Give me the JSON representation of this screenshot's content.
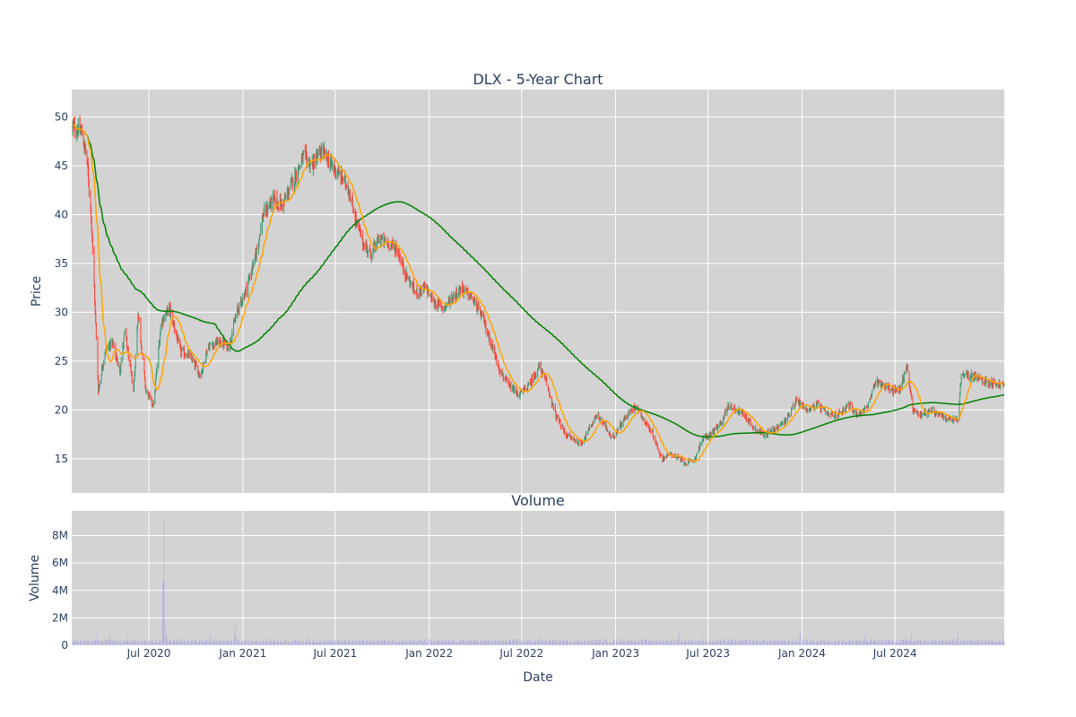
{
  "chart_data": [
    {
      "type": "candlestick",
      "title": "DLX - 5-Year Chart",
      "ylabel": "Price",
      "ylim": [
        11.5,
        52.8
      ],
      "y_ticks": [
        15,
        20,
        25,
        30,
        35,
        40,
        45,
        50
      ],
      "grid": true,
      "legend": "none",
      "x_range": [
        "2020-02-01",
        "2025-01-31"
      ],
      "colors": {
        "up": "#3d9970",
        "down": "#ff4136",
        "ma_short": "#ffa500",
        "ma_long": "#008000",
        "background": "#d3d3d3",
        "grid": "#ffffff"
      },
      "close_anchors": [
        [
          "2020-02-01",
          49.0
        ],
        [
          "2020-02-20",
          48.5
        ],
        [
          "2020-03-02",
          45.5
        ],
        [
          "2020-03-10",
          40.0
        ],
        [
          "2020-03-18",
          30.0
        ],
        [
          "2020-03-24",
          22.0
        ],
        [
          "2020-04-06",
          26.0
        ],
        [
          "2020-04-20",
          27.0
        ],
        [
          "2020-05-05",
          24.0
        ],
        [
          "2020-05-15",
          28.0
        ],
        [
          "2020-06-01",
          22.0
        ],
        [
          "2020-06-10",
          30.0
        ],
        [
          "2020-06-25",
          22.0
        ],
        [
          "2020-07-10",
          20.5
        ],
        [
          "2020-07-25",
          29.0
        ],
        [
          "2020-08-10",
          30.5
        ],
        [
          "2020-09-01",
          26.0
        ],
        [
          "2020-09-20",
          25.5
        ],
        [
          "2020-10-10",
          23.5
        ],
        [
          "2020-10-25",
          26.5
        ],
        [
          "2020-11-15",
          27.0
        ],
        [
          "2020-12-05",
          26.5
        ],
        [
          "2020-12-20",
          30.0
        ],
        [
          "2021-01-05",
          32.0
        ],
        [
          "2021-01-25",
          35.5
        ],
        [
          "2021-02-10",
          40.0
        ],
        [
          "2021-03-01",
          41.5
        ],
        [
          "2021-03-20",
          41.0
        ],
        [
          "2021-04-10",
          43.5
        ],
        [
          "2021-04-30",
          46.0
        ],
        [
          "2021-05-15",
          45.0
        ],
        [
          "2021-06-05",
          46.5
        ],
        [
          "2021-06-25",
          45.0
        ],
        [
          "2021-07-10",
          44.0
        ],
        [
          "2021-07-25",
          43.0
        ],
        [
          "2021-08-10",
          39.5
        ],
        [
          "2021-08-25",
          37.0
        ],
        [
          "2021-09-10",
          36.0
        ],
        [
          "2021-09-25",
          37.5
        ],
        [
          "2021-10-15",
          37.0
        ],
        [
          "2021-10-30",
          36.5
        ],
        [
          "2021-11-15",
          34.0
        ],
        [
          "2021-12-05",
          32.0
        ],
        [
          "2021-12-25",
          32.5
        ],
        [
          "2022-01-10",
          31.0
        ],
        [
          "2022-01-30",
          30.5
        ],
        [
          "2022-02-15",
          31.5
        ],
        [
          "2022-03-05",
          32.5
        ],
        [
          "2022-03-25",
          31.5
        ],
        [
          "2022-04-15",
          29.5
        ],
        [
          "2022-05-01",
          27.0
        ],
        [
          "2022-05-20",
          24.0
        ],
        [
          "2022-06-05",
          22.5
        ],
        [
          "2022-06-25",
          21.5
        ],
        [
          "2022-07-15",
          22.5
        ],
        [
          "2022-08-05",
          24.5
        ],
        [
          "2022-08-20",
          22.5
        ],
        [
          "2022-09-05",
          19.5
        ],
        [
          "2022-09-25",
          17.5
        ],
        [
          "2022-10-10",
          17.0
        ],
        [
          "2022-10-25",
          16.5
        ],
        [
          "2022-11-10",
          18.0
        ],
        [
          "2022-11-25",
          19.5
        ],
        [
          "2022-12-10",
          18.5
        ],
        [
          "2022-12-25",
          17.0
        ],
        [
          "2023-01-10",
          18.5
        ],
        [
          "2023-01-25",
          19.5
        ],
        [
          "2023-02-10",
          20.5
        ],
        [
          "2023-02-25",
          19.0
        ],
        [
          "2023-03-15",
          17.5
        ],
        [
          "2023-04-01",
          15.0
        ],
        [
          "2023-04-20",
          15.5
        ],
        [
          "2023-05-05",
          15.0
        ],
        [
          "2023-05-20",
          14.5
        ],
        [
          "2023-06-05",
          15.0
        ],
        [
          "2023-06-20",
          17.0
        ],
        [
          "2023-07-05",
          17.5
        ],
        [
          "2023-07-25",
          18.5
        ],
        [
          "2023-08-10",
          20.5
        ],
        [
          "2023-08-25",
          20.0
        ],
        [
          "2023-09-10",
          19.5
        ],
        [
          "2023-10-01",
          18.0
        ],
        [
          "2023-10-20",
          17.5
        ],
        [
          "2023-11-10",
          18.0
        ],
        [
          "2023-12-01",
          19.0
        ],
        [
          "2023-12-20",
          21.0
        ],
        [
          "2024-01-10",
          20.0
        ],
        [
          "2024-02-01",
          20.5
        ],
        [
          "2024-02-20",
          19.5
        ],
        [
          "2024-03-10",
          19.5
        ],
        [
          "2024-04-01",
          20.5
        ],
        [
          "2024-04-20",
          19.5
        ],
        [
          "2024-05-10",
          20.5
        ],
        [
          "2024-05-25",
          23.0
        ],
        [
          "2024-06-10",
          22.5
        ],
        [
          "2024-06-25",
          22.0
        ],
        [
          "2024-07-10",
          22.0
        ],
        [
          "2024-07-25",
          24.5
        ],
        [
          "2024-08-05",
          20.0
        ],
        [
          "2024-08-20",
          19.5
        ],
        [
          "2024-09-10",
          20.0
        ],
        [
          "2024-09-25",
          19.5
        ],
        [
          "2024-10-15",
          19.0
        ],
        [
          "2024-11-01",
          19.0
        ],
        [
          "2024-11-08",
          23.5
        ],
        [
          "2024-12-01",
          23.5
        ],
        [
          "2024-12-20",
          23.0
        ],
        [
          "2025-01-31",
          22.5
        ]
      ],
      "series": [
        {
          "values": "candles"
        },
        {
          "values": "ma_short"
        },
        {
          "values": "ma_long"
        }
      ]
    },
    {
      "type": "bar",
      "title": "Volume",
      "xlabel": "Date",
      "ylabel": "Volume",
      "ylim": [
        0,
        9800000
      ],
      "y_ticks": [
        0,
        2000000,
        4000000,
        6000000,
        8000000
      ],
      "y_tick_labels": [
        "0",
        "2M",
        "4M",
        "6M",
        "8M"
      ],
      "x_ticks": [
        "2020-07-01",
        "2021-01-01",
        "2021-07-01",
        "2022-01-01",
        "2022-07-01",
        "2023-01-01",
        "2023-07-01",
        "2024-01-01",
        "2024-07-01"
      ],
      "x_tick_labels": [
        "Jul 2020",
        "Jan 2021",
        "Jul 2021",
        "Jan 2022",
        "Jul 2022",
        "Jan 2023",
        "Jul 2023",
        "Jan 2024",
        "Jul 2024"
      ],
      "bar_color": "#8b8ce8",
      "typical_volume": 320000,
      "volume_spikes": [
        [
          "2020-03-20",
          750000
        ],
        [
          "2020-04-15",
          800000
        ],
        [
          "2020-05-20",
          700000
        ],
        [
          "2020-07-30",
          9200000
        ],
        [
          "2020-08-03",
          1600000
        ],
        [
          "2020-10-30",
          1000000
        ],
        [
          "2020-12-18",
          1500000
        ],
        [
          "2021-05-10",
          650000
        ],
        [
          "2022-08-05",
          700000
        ],
        [
          "2023-01-02",
          600000
        ],
        [
          "2023-05-05",
          1000000
        ],
        [
          "2023-11-05",
          600000
        ],
        [
          "2023-12-29",
          1100000
        ],
        [
          "2024-05-03",
          800000
        ],
        [
          "2024-08-02",
          900000
        ],
        [
          "2024-11-01",
          1000000
        ]
      ]
    }
  ]
}
